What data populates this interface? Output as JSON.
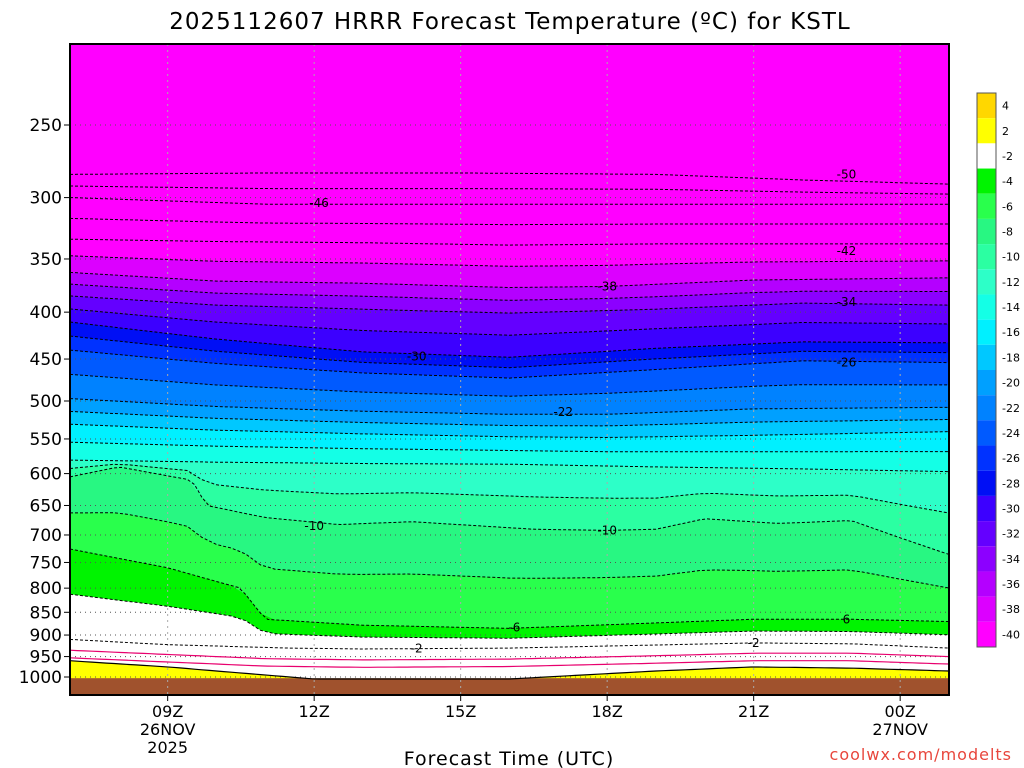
{
  "chart_data": {
    "type": "heatmap",
    "title": "2025112607 HRRR Forecast Temperature (ºC) for KSTL",
    "xlabel": "Forecast Time (UTC)",
    "ylabel": "",
    "credit": "coolwx.com/modelts",
    "y_scale": "log-pressure",
    "y_range_hPa": [
      1000,
      200
    ],
    "x_range_hours": [
      7,
      25
    ],
    "y_ticks": [
      250,
      300,
      350,
      400,
      450,
      500,
      550,
      600,
      650,
      700,
      750,
      800,
      850,
      900,
      950,
      1000
    ],
    "y_tick_labels": [
      "250",
      "300",
      "350",
      "400",
      "450",
      "500",
      "550",
      "600",
      "650",
      "700",
      "750",
      "800",
      "850",
      "900",
      "950",
      "1000"
    ],
    "x_ticks": [
      {
        "hour": 9,
        "lines": [
          "09Z",
          "26NOV",
          "2025"
        ]
      },
      {
        "hour": 12,
        "lines": [
          "12Z"
        ]
      },
      {
        "hour": 15,
        "lines": [
          "15Z"
        ]
      },
      {
        "hour": 18,
        "lines": [
          "18Z"
        ]
      },
      {
        "hour": 21,
        "lines": [
          "21Z"
        ]
      },
      {
        "hour": 24,
        "lines": [
          "00Z",
          "27NOV"
        ]
      }
    ],
    "grid": true,
    "colorbar": {
      "position": "right",
      "levels": [
        4,
        2,
        -2,
        -4,
        -6,
        -8,
        -10,
        -12,
        -14,
        -16,
        -18,
        -20,
        -22,
        -24,
        -26,
        -28,
        -30,
        -32,
        -34,
        -36,
        -38,
        -40
      ],
      "colors": [
        "#ffd700",
        "#ffff00",
        "#ffffff",
        "#00f400",
        "#29ff4c",
        "#28f782",
        "#2bffa2",
        "#2dffc8",
        "#14ffe6",
        "#00f0ff",
        "#00c8ff",
        "#00a0ff",
        "#0082ff",
        "#005aff",
        "#0032ff",
        "#000ff5",
        "#3c00ff",
        "#6400ff",
        "#8c00ff",
        "#b400ff",
        "#dc00ff",
        "#ff00ff"
      ]
    },
    "series": [
      {
        "level": -50,
        "profile_hPa": [
          [
            7,
            283
          ],
          [
            11,
            282
          ],
          [
            15,
            282
          ],
          [
            19,
            283
          ],
          [
            22,
            287
          ],
          [
            25,
            290
          ]
        ]
      },
      {
        "level": -46,
        "profile_hPa": [
          [
            7,
            300
          ],
          [
            11,
            305
          ],
          [
            15,
            305
          ],
          [
            19,
            305
          ],
          [
            22,
            305
          ],
          [
            25,
            305
          ]
        ]
      },
      {
        "level": -42,
        "profile_hPa": [
          [
            7,
            333
          ],
          [
            10,
            335
          ],
          [
            13,
            336
          ],
          [
            16,
            338
          ],
          [
            19,
            337
          ],
          [
            22,
            337
          ],
          [
            25,
            337
          ]
        ]
      },
      {
        "level": -38,
        "profile_hPa": [
          [
            7,
            362
          ],
          [
            10,
            370
          ],
          [
            13,
            372
          ],
          [
            16,
            376
          ],
          [
            18,
            375
          ],
          [
            21,
            369
          ],
          [
            25,
            367
          ]
        ]
      },
      {
        "level": -34,
        "profile_hPa": [
          [
            7,
            384
          ],
          [
            10,
            393
          ],
          [
            13,
            397
          ],
          [
            16,
            401
          ],
          [
            19,
            397
          ],
          [
            22,
            391
          ],
          [
            25,
            393
          ]
        ]
      },
      {
        "level": -30,
        "profile_hPa": [
          [
            7,
            410
          ],
          [
            10,
            428
          ],
          [
            13,
            442
          ],
          [
            16,
            448
          ],
          [
            19,
            438
          ],
          [
            22,
            431
          ],
          [
            25,
            432
          ]
        ]
      },
      {
        "level": -26,
        "profile_hPa": [
          [
            7,
            440
          ],
          [
            10,
            455
          ],
          [
            13,
            466
          ],
          [
            16,
            472
          ],
          [
            19,
            462
          ],
          [
            22,
            452
          ],
          [
            25,
            454
          ]
        ]
      },
      {
        "level": -22,
        "profile_hPa": [
          [
            7,
            497
          ],
          [
            10,
            507
          ],
          [
            13,
            513
          ],
          [
            16,
            517
          ],
          [
            18,
            517
          ],
          [
            21,
            510
          ],
          [
            25,
            508
          ]
        ]
      },
      {
        "level": -18,
        "profile_hPa": [
          [
            7,
            530
          ],
          [
            10,
            538
          ],
          [
            13,
            543
          ],
          [
            16,
            547
          ],
          [
            18,
            548
          ],
          [
            21,
            545
          ],
          [
            25,
            540
          ]
        ]
      },
      {
        "level": -14,
        "profile_hPa": [
          [
            7,
            580
          ],
          [
            10,
            583
          ],
          [
            13,
            585
          ],
          [
            16,
            586
          ],
          [
            19,
            590
          ],
          [
            22,
            593
          ],
          [
            25,
            597
          ]
        ]
      },
      {
        "level": -10,
        "profile_hPa": [
          [
            7,
            605
          ],
          [
            8,
            590
          ],
          [
            9.5,
            610
          ],
          [
            9.8,
            650
          ],
          [
            11,
            670
          ],
          [
            12.5,
            682
          ],
          [
            14,
            677
          ],
          [
            16.5,
            690
          ],
          [
            18,
            692
          ],
          [
            19,
            690
          ],
          [
            20,
            672
          ],
          [
            21.5,
            680
          ],
          [
            23,
            675
          ],
          [
            25,
            735
          ]
        ]
      },
      {
        "level": -6,
        "profile_hPa": [
          [
            7,
            725
          ],
          [
            9,
            760
          ],
          [
            10.5,
            800
          ],
          [
            11,
            865
          ],
          [
            13,
            878
          ],
          [
            16,
            885
          ],
          [
            18.5,
            875
          ],
          [
            21,
            865
          ],
          [
            23,
            865
          ],
          [
            25,
            870
          ]
        ]
      },
      {
        "level": -2,
        "profile_hPa": [
          [
            7,
            910
          ],
          [
            9,
            922
          ],
          [
            11.5,
            930
          ],
          [
            13,
            932
          ],
          [
            16,
            930
          ],
          [
            18.5,
            924
          ],
          [
            21,
            918
          ],
          [
            23,
            920
          ],
          [
            25,
            930
          ]
        ]
      },
      {
        "level": 0,
        "profile_hPa": [
          [
            7,
            935
          ],
          [
            9,
            945
          ],
          [
            11,
            955
          ],
          [
            13,
            958
          ],
          [
            16,
            956
          ],
          [
            19,
            948
          ],
          [
            21,
            942
          ],
          [
            23,
            942
          ],
          [
            25,
            950
          ]
        ]
      }
    ],
    "contour_labels": [
      {
        "text": "-50",
        "hour": 22.9,
        "hPa": 283
      },
      {
        "text": "-46",
        "hour": 12.1,
        "hPa": 304
      },
      {
        "text": "-42",
        "hour": 22.9,
        "hPa": 343
      },
      {
        "text": "-38",
        "hour": 18.0,
        "hPa": 375
      },
      {
        "text": "-34",
        "hour": 22.9,
        "hPa": 390
      },
      {
        "text": "-30",
        "hour": 14.1,
        "hPa": 447
      },
      {
        "text": "-26",
        "hour": 22.9,
        "hPa": 454
      },
      {
        "text": "-22",
        "hour": 17.1,
        "hPa": 514
      },
      {
        "text": "-10",
        "hour": 12.0,
        "hPa": 684
      },
      {
        "text": "-10",
        "hour": 18.0,
        "hPa": 692
      },
      {
        "text": "-6",
        "hour": 16.1,
        "hPa": 883
      },
      {
        "text": "6",
        "hour": 22.9,
        "hPa": 865
      },
      {
        "text": "-2",
        "hour": 14.1,
        "hPa": 931
      },
      {
        "text": "-2",
        "hour": 21.0,
        "hPa": 918
      }
    ]
  }
}
